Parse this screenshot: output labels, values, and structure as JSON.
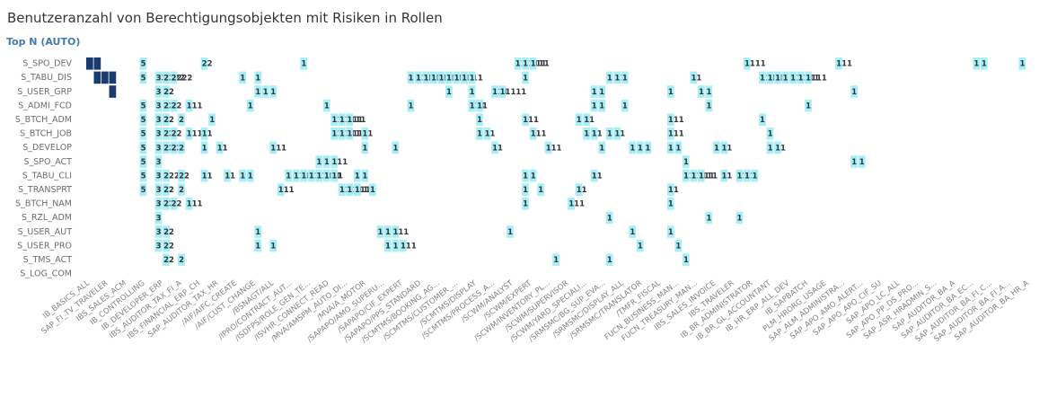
{
  "title": "Benutzeranzahl von Berechtigungsobjekten mit Risiken in Rollen",
  "subtitle": "Top N (AUTO)",
  "colors": {
    "light": "#a6eef8",
    "dark": "#1a3b6e",
    "text": "#32363a"
  },
  "chart_data": {
    "type": "heatmap",
    "title": "Benutzeranzahl von Berechtigungsobjekten mit Risiken in Rollen",
    "rows": [
      "S_SPO_DEV",
      "S_TABU_DIS",
      "S_USER_GRP",
      "S_ADMI_FCD",
      "S_BTCH_ADM",
      "S_BTCH_JOB",
      "S_DEVELOP",
      "S_SPO_ACT",
      "S_TABU_CLI",
      "S_TRANSPRT",
      "S_BTCH_NAM",
      "S_RZL_ADM",
      "S_USER_AUT",
      "S_USER_PRO",
      "S_TMS_ACT",
      "S_LOG_COM"
    ],
    "x_labels": [
      "IB_BASICS_ALL",
      "SAP_FI_TV_TRAVELER",
      "IBS_SALES_ACM",
      "IB_CONTROLLING",
      "IB_DEVELOPER_ERP",
      "IBS_AUDITOR_TAX_FI_A",
      "IBS_FINANCIAL_ERP_CH",
      "SAP_AUDITOR_TAX_HR",
      "/AIF/AIFC_CREATE",
      "/AIF/CUST_CHANGE",
      "/BSNAGT/ALL",
      "/IPRO/CONTRACT_AUT...",
      "/ISDFPS/ROLE_GEN_TE...",
      "/ISVHR_CONNECT_READ",
      "/MVA/AMSPM_AUTO_DI...",
      "/MVA/A_MOTOR",
      "/SAPAPO/AMO_SUPERU...",
      "/SAPAPO/CIF_EXPERT",
      "/SAPAPO/PPS_STANDARD",
      "/SCMTMS/BOOKING_AG...",
      "/SCMTMS/CUSTOMER_...",
      "/SCMTMS/DISPLAY",
      "/SCMTMS/PROCESS_A...",
      "/SCWM/ANALYST",
      "/SCWM/EXPERT",
      "/SCWM/INVENTORY_PL...",
      "/SCWM/SUPERVISOR",
      "/SCWM/YARD_SPECIALI...",
      "/SRMSMC/BG_SUP_EVA...",
      "/SRMSMC/DISPLAY_ALL",
      "/SRMSMC/TRANSLATOR",
      "/TMFR_FISCAL",
      "FUCN_BUSINESS_MAN...",
      "FUCN_TREASURY_MAN...",
      "IBS_SALES_INVOICE",
      "IBS_TRAVELER",
      "IB_BR_ADMINISTRATOR",
      "IB_BR_GL_ACCOUNTANT",
      "IB_HR_ERP_ALL_DEV",
      "IB_SAPBATCH",
      "PLM_HRORG_USAGE",
      "SAP_ALM_ADMINISTRA...",
      "SAP_APO_AMO_ALERT...",
      "SAP_APO_APO_CIF_SU",
      "SAP_APO_LC_ALL",
      "SAP_APO_PP_DS_PRO...",
      "SAP_ASR_HRADMIN_S...",
      "SAP_AUDITOR_BA_A",
      "SAP_AUDITOR_BA_EC...",
      "SAP_AUDITOR_BA_FI_C...",
      "SAP_AUDITOR_BA_FI_A...",
      "SAP_AUDITOR_BA_HR_A"
    ],
    "cells_by_row": [
      [
        "D",
        "D",
        "",
        "",
        "",
        "",
        "",
        "5",
        "",
        "",
        "",
        "",
        "",
        "",
        "",
        "22",
        "",
        "",
        "",
        "",
        "",
        "",
        "",
        "",
        "",
        "",
        "",
        "",
        "1",
        "",
        "",
        "",
        "",
        "",
        "",
        "",
        "",
        "",
        "",
        "",
        "",
        "",
        "",
        "",
        "",
        "",
        "",
        "",
        "",
        "",
        "",
        "",
        "",
        "",
        "",
        "",
        "11",
        "11111",
        "111",
        "",
        "",
        "",
        "",
        "",
        "",
        "",
        "",
        "",
        "",
        "",
        "",
        "",
        "",
        "",
        "",
        "",
        "",
        "",
        "",
        "",
        "",
        "",
        "",
        "",
        "",
        "",
        "1111",
        "",
        "",
        "",
        "",
        "",
        "",
        "",
        "",
        "",
        "",
        "",
        "111",
        "",
        "",
        "",
        "",
        "",
        "",
        "",
        "",
        "",
        "",
        "",
        "",
        "",
        "",
        "",
        "",
        "",
        "1",
        "1",
        "",
        "",
        "",
        "",
        "1",
        "",
        ""
      ],
      [
        "",
        "D",
        "D",
        "D",
        "",
        "",
        "",
        "5",
        "",
        "33",
        "2222",
        "2222",
        "",
        "",
        "",
        "",
        "",
        "",
        "",
        "",
        "1",
        "",
        "1",
        "",
        "",
        "",
        "",
        "",
        "",
        "",
        "",
        "",
        "",
        "",
        "",
        "",
        "",
        "",
        "",
        "",
        "",
        "",
        "1",
        "1111",
        "1111",
        "11111",
        "1111",
        "1111",
        "1111",
        "1111",
        "1",
        "",
        "",
        "",
        "",
        "",
        "",
        "1",
        "",
        "",
        "",
        "",
        "",
        "",
        "",
        "",
        "",
        "",
        "1",
        "11",
        "1",
        "",
        "",
        "",
        "",
        "",
        "",
        "",
        "",
        "11",
        "",
        "",
        "",
        "",
        "",
        "",
        "",
        "",
        "1111",
        "1111",
        "11",
        "1",
        "11",
        "1111",
        "1111"
      ],
      [
        "",
        "",
        "",
        "D",
        "",
        "",
        "",
        "",
        "",
        "3",
        "22",
        "",
        "",
        "",
        "",
        "",
        "",
        "",
        "",
        "",
        "",
        "",
        "1",
        "1",
        "1",
        "",
        "",
        "",
        "",
        "",
        "",
        "",
        "",
        "",
        "",
        "",
        "",
        "",
        "",
        "",
        "",
        "",
        "",
        "",
        "",
        "",
        "",
        "1",
        "",
        "",
        "1",
        "",
        "",
        "111",
        "11111",
        "",
        "",
        "",
        "",
        "",
        "",
        "",
        "",
        "",
        "",
        "",
        "1",
        "1",
        "",
        "",
        "",
        "",
        "",
        "",
        "",
        "",
        "1",
        "",
        "",
        "",
        "1",
        "1",
        "",
        "",
        "",
        "",
        "",
        "",
        "",
        "",
        "",
        "",
        "",
        "",
        "",
        "",
        "",
        "",
        "",
        "",
        "1"
      ],
      [
        "",
        "",
        "",
        "",
        "",
        "",
        "",
        "5",
        "",
        "3",
        "22",
        "22",
        "",
        "111",
        "",
        "",
        "",
        "",
        "",
        "",
        "",
        "1",
        "",
        "",
        "",
        "",
        "",
        "",
        "",
        "",
        "",
        "1",
        "",
        "",
        "",
        "",
        "",
        "",
        "",
        "",
        "",
        "",
        "1",
        "",
        "",
        "",
        "",
        "",
        "",
        "",
        "111",
        "11",
        "",
        "",
        "",
        "",
        "",
        "",
        "",
        "",
        "",
        "",
        "",
        "",
        "",
        "",
        "1",
        "1",
        "",
        "",
        "1",
        "",
        "",
        "",
        "",
        "",
        "",
        "",
        "",
        "",
        "",
        "1",
        "",
        "",
        "",
        "",
        "",
        "",
        "",
        "",
        "",
        "",
        "",
        "",
        "1"
      ],
      [
        "",
        "",
        "",
        "",
        "",
        "",
        "",
        "5",
        "",
        "3",
        "22",
        "",
        "2",
        "",
        "",
        "",
        "1",
        "",
        "",
        "",
        "",
        "",
        "",
        "",
        "",
        "",
        "",
        "",
        "",
        "",
        "",
        "",
        "11",
        "11111",
        "111",
        "",
        "",
        "",
        "",
        "",
        "",
        "",
        "",
        "",
        "",
        "",
        "",
        "",
        "",
        "",
        "",
        "1",
        "",
        "",
        "",
        "",
        "",
        "111",
        "",
        "",
        "",
        "",
        "",
        "",
        "1",
        "11",
        "",
        "",
        "",
        "",
        "",
        "",
        "",
        "",
        "",
        "",
        "111",
        "",
        "",
        "",
        "",
        "",
        "",
        "",
        "",
        "",
        "",
        "",
        "1"
      ],
      [
        "",
        "",
        "",
        "",
        "",
        "",
        "",
        "5",
        "",
        "3",
        "22",
        "22",
        "",
        "111",
        "",
        "11",
        "",
        "",
        "",
        "",
        "",
        "",
        "",
        "",
        "",
        "",
        "",
        "",
        "",
        "",
        "",
        "",
        "11",
        "11111",
        "111",
        "",
        "11",
        "",
        "",
        "",
        "",
        "",
        "",
        "",
        "",
        "",
        "",
        "",
        "",
        "",
        "",
        "1",
        "11",
        "",
        "",
        "",
        "",
        "",
        "111",
        "",
        "",
        "",
        "",
        "",
        "",
        "1",
        "11",
        "",
        "1",
        "11",
        "",
        "",
        "",
        "",
        "",
        "",
        "111",
        "",
        "",
        "",
        "",
        "",
        "",
        "",
        "",
        "",
        "",
        "",
        "",
        "1"
      ],
      [
        "",
        "",
        "",
        "",
        "",
        "",
        "",
        "5",
        "",
        "3",
        "22",
        "22",
        "2",
        "",
        "",
        "1",
        "",
        "11",
        "",
        "",
        "",
        "",
        "",
        "",
        "111",
        "",
        "",
        "",
        "",
        "",
        "",
        "",
        "",
        "",
        "",
        "",
        "1",
        "",
        "",
        "",
        "1",
        "",
        "",
        "",
        "",
        "",
        "",
        "",
        "",
        "",
        "",
        "",
        "",
        "11",
        "",
        "",
        "",
        "",
        "",
        "",
        "111",
        "",
        "",
        "",
        "",
        "",
        "",
        "1",
        "",
        "",
        "",
        "1",
        "1",
        "1",
        "",
        "",
        "1",
        "1",
        "",
        "",
        "",
        "",
        "1",
        "11",
        "",
        "",
        "",
        "",
        "",
        "1",
        "11"
      ],
      [
        "",
        "",
        "",
        "",
        "",
        "",
        "",
        "5",
        "",
        "3",
        "",
        "",
        "",
        "",
        "",
        "",
        "",
        "",
        "",
        "",
        "",
        "",
        "",
        "",
        "",
        "",
        "",
        "",
        "",
        "",
        "1",
        "1",
        "111",
        "",
        "",
        "",
        "",
        "",
        "",
        "",
        "",
        "",
        "",
        "",
        "",
        "",
        "",
        "",
        "",
        "",
        "",
        "",
        "",
        "",
        "",
        "",
        "",
        "",
        "",
        "",
        "",
        "",
        "",
        "",
        "",
        "",
        "",
        "",
        "",
        "",
        "",
        "",
        "",
        "",
        "",
        "",
        "",
        "",
        "1",
        "",
        "",
        "",
        "",
        "",
        "",
        "",
        "",
        "",
        "",
        "",
        "",
        "",
        "",
        "",
        "",
        "",
        "",
        "",
        "",
        "",
        "1",
        "1"
      ],
      [
        "",
        "",
        "",
        "",
        "",
        "",
        "",
        "5",
        "",
        "3",
        "222",
        "",
        "22",
        "",
        "",
        "11",
        "",
        "",
        "11",
        "",
        "1",
        "1",
        "",
        "",
        "",
        "",
        "1",
        "1111",
        "1",
        "11",
        "11111",
        "111",
        "11",
        "",
        "",
        "1",
        "1",
        "",
        "",
        "",
        "",
        "",
        "",
        "",
        "",
        "",
        "",
        "",
        "",
        "",
        "",
        "",
        "",
        "",
        "",
        "",
        "",
        "1",
        "1",
        "",
        "",
        "",
        "",
        "",
        "",
        "",
        "11",
        "",
        "",
        "",
        "",
        "",
        "",
        "",
        "",
        "",
        "",
        "",
        "11",
        "11111",
        "111",
        "",
        "",
        "11",
        "",
        "11",
        "11",
        "1"
      ],
      [
        "",
        "",
        "",
        "",
        "",
        "",
        "",
        "5",
        "",
        "3",
        "22",
        "",
        "2",
        "",
        "",
        "",
        "",
        "",
        "",
        "",
        "",
        "",
        "",
        "",
        "",
        "111",
        "",
        "",
        "",
        "",
        "",
        "",
        "",
        "11",
        "11111",
        "111",
        "",
        "1",
        "",
        "",
        "",
        "",
        "",
        "",
        "",
        "",
        "",
        "",
        "",
        "",
        "",
        "",
        "",
        "",
        "",
        "",
        "",
        "1",
        "",
        "1",
        "",
        "",
        "",
        "",
        "11",
        "",
        "",
        "",
        "",
        "",
        "",
        "",
        "",
        "",
        "",
        "",
        "11"
      ],
      [
        "",
        "",
        "",
        "",
        "",
        "",
        "",
        "",
        "",
        "3",
        "22",
        "22",
        "",
        "111",
        "",
        "",
        "",
        "",
        "",
        "",
        "",
        "",
        "",
        "",
        "",
        "",
        "",
        "",
        "",
        "",
        "",
        "",
        "",
        "",
        "",
        "",
        "",
        "",
        "",
        "",
        "",
        "",
        "",
        "",
        "",
        "",
        "",
        "",
        "",
        "",
        "",
        "",
        "",
        "",
        "",
        "",
        "",
        "1",
        "",
        "",
        "",
        "",
        "",
        "111",
        "",
        "",
        "",
        "",
        "",
        "",
        "",
        "",
        "",
        "",
        "",
        "",
        "1"
      ],
      [
        "",
        "",
        "",
        "",
        "",
        "",
        "",
        "",
        "",
        "3",
        "",
        "",
        "",
        "",
        "",
        "",
        "",
        "",
        "",
        "",
        "",
        "",
        "",
        "",
        "",
        "",
        "",
        "",
        "",
        "",
        "",
        "",
        "",
        "",
        "",
        "",
        "",
        "",
        "",
        "",
        "",
        "",
        "",
        "",
        "",
        "",
        "",
        "",
        "",
        "",
        "",
        "",
        "",
        "",
        "",
        "",
        "",
        "",
        "",
        "",
        "",
        "",
        "",
        "",
        "",
        "",
        "",
        "",
        "1",
        "",
        "",
        "",
        "",
        "",
        "",
        "",
        "",
        "",
        "",
        "",
        "",
        "1",
        "",
        "",
        "",
        "1"
      ],
      [
        "",
        "",
        "",
        "",
        "",
        "",
        "",
        "",
        "",
        "3",
        "22",
        "",
        "",
        "",
        "",
        "",
        "",
        "",
        "",
        "",
        "",
        "",
        "1",
        "",
        "",
        "",
        "",
        "",
        "",
        "",
        "",
        "",
        "",
        "",
        "",
        "",
        "",
        "",
        "1",
        "1",
        "111",
        "",
        "",
        "",
        "",
        "",
        "",
        "",
        "",
        "",
        "",
        "",
        "",
        "",
        "",
        "1",
        "",
        "",
        "",
        "",
        "",
        "",
        "",
        "",
        "",
        "",
        "",
        "",
        "",
        "",
        "",
        "1",
        "",
        "",
        "",
        "",
        "1"
      ],
      [
        "",
        "",
        "",
        "",
        "",
        "",
        "",
        "",
        "",
        "3",
        "22",
        "",
        "",
        "",
        "",
        "",
        "",
        "",
        "",
        "",
        "",
        "",
        "1",
        "",
        "1",
        "",
        "",
        "",
        "",
        "",
        "",
        "",
        "",
        "",
        "",
        "",
        "",
        "",
        "",
        "1",
        "1",
        "111",
        "",
        "",
        "",
        "",
        "",
        "",
        "",
        "",
        "",
        "",
        "",
        "",
        "",
        "",
        "",
        "",
        "",
        "",
        "",
        "",
        "",
        "",
        "",
        "",
        "",
        "",
        "",
        "",
        "",
        "",
        "1",
        "",
        "",
        "",
        "",
        "1"
      ],
      [
        "",
        "",
        "",
        "",
        "",
        "",
        "",
        "",
        "",
        "",
        "22",
        "",
        "2",
        "",
        "",
        "",
        "",
        "",
        "",
        "",
        "",
        "",
        "",
        "",
        "",
        "",
        "",
        "",
        "",
        "",
        "",
        "",
        "",
        "",
        "",
        "",
        "",
        "",
        "",
        "",
        "",
        "",
        "",
        "",
        "",
        "",
        "",
        "",
        "",
        "",
        "",
        "",
        "",
        "",
        "",
        "",
        "",
        "",
        "",
        "",
        "",
        "1",
        "",
        "",
        "",
        "",
        "",
        "",
        "1",
        "",
        "",
        "",
        "",
        "",
        "",
        "",
        "",
        "",
        "1"
      ],
      [
        "",
        "",
        "",
        "",
        "",
        "",
        "",
        "",
        "",
        "",
        "",
        "",
        "",
        "",
        "",
        "",
        "",
        "",
        "",
        "",
        "",
        "",
        "",
        "",
        "",
        "",
        "",
        "",
        "",
        "",
        "",
        "",
        "",
        "",
        "",
        "",
        "",
        "",
        "",
        "",
        "",
        "",
        "",
        "",
        "",
        "",
        "",
        "",
        "",
        "",
        "",
        "",
        "",
        "",
        "",
        "",
        "",
        "",
        "",
        "",
        "",
        "",
        "",
        "",
        "",
        "",
        "",
        "",
        "",
        "",
        "",
        "",
        "",
        "",
        "",
        "",
        "",
        ""
      ]
    ],
    "grid": false,
    "legend": "none"
  }
}
